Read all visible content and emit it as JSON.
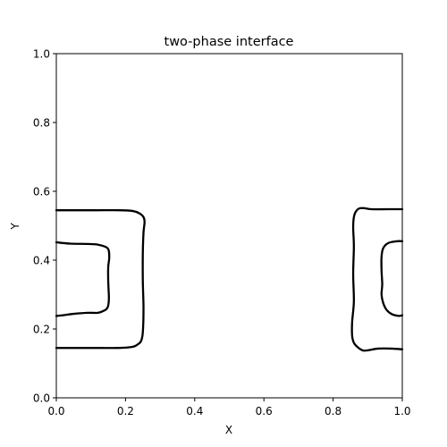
{
  "chart_data": {
    "type": "line",
    "title": "two-phase interface",
    "xlabel": "X",
    "ylabel": "Y",
    "xlim": [
      0.0,
      1.0
    ],
    "ylim": [
      0.0,
      1.0
    ],
    "grid": false,
    "xticks": [
      "0.0",
      "0.2",
      "0.4",
      "0.6",
      "0.8",
      "1.0"
    ],
    "yticks": [
      "0.0",
      "0.2",
      "0.4",
      "0.6",
      "0.8",
      "1.0"
    ],
    "line_color": "#000000",
    "series": [
      {
        "x": [
          0.0,
          0.05,
          0.12,
          0.18,
          0.22,
          0.24,
          0.252,
          0.255,
          0.252,
          0.25,
          0.25,
          0.252,
          0.25,
          0.245,
          0.235,
          0.22,
          0.18,
          0.12,
          0.05,
          0.0
        ],
        "y": [
          0.545,
          0.545,
          0.545,
          0.545,
          0.543,
          0.536,
          0.525,
          0.51,
          0.48,
          0.42,
          0.34,
          0.26,
          0.19,
          0.165,
          0.155,
          0.148,
          0.145,
          0.145,
          0.145,
          0.145
        ]
      },
      {
        "x": [
          0.0,
          0.04,
          0.09,
          0.12,
          0.148,
          0.153,
          0.15,
          0.15,
          0.152,
          0.15,
          0.145,
          0.135,
          0.12,
          0.09,
          0.05,
          0.02,
          0.0
        ],
        "y": [
          0.452,
          0.448,
          0.447,
          0.445,
          0.435,
          0.41,
          0.38,
          0.34,
          0.29,
          0.268,
          0.258,
          0.252,
          0.247,
          0.247,
          0.244,
          0.24,
          0.238
        ]
      },
      {
        "x": [
          1.0,
          0.96,
          0.91,
          0.89,
          0.875,
          0.865,
          0.86,
          0.858,
          0.86,
          0.858,
          0.86,
          0.855,
          0.855,
          0.86,
          0.87,
          0.885,
          0.9,
          0.93,
          0.97,
          1.0
        ],
        "y": [
          0.548,
          0.548,
          0.548,
          0.551,
          0.55,
          0.54,
          0.525,
          0.495,
          0.44,
          0.36,
          0.28,
          0.22,
          0.18,
          0.16,
          0.148,
          0.138,
          0.138,
          0.143,
          0.143,
          0.141
        ]
      },
      {
        "x": [
          1.0,
          0.985,
          0.96,
          0.945,
          0.94,
          0.94,
          0.942,
          0.94,
          0.945,
          0.955,
          0.97,
          0.99,
          1.0
        ],
        "y": [
          0.455,
          0.455,
          0.45,
          0.435,
          0.41,
          0.37,
          0.33,
          0.3,
          0.275,
          0.255,
          0.243,
          0.238,
          0.24
        ]
      }
    ]
  }
}
